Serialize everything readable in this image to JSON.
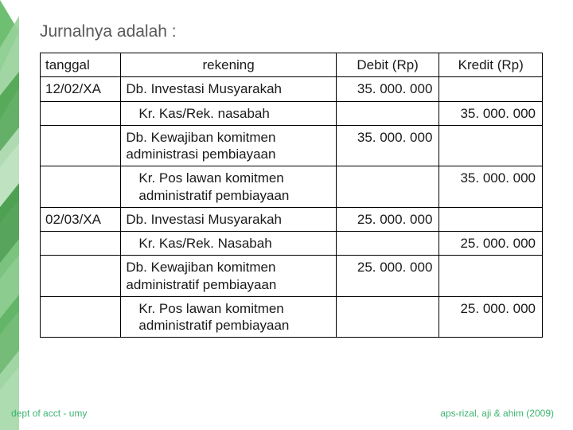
{
  "title": "Jurnalnya adalah :",
  "table": {
    "headers": {
      "tanggal": "tanggal",
      "rekening": "rekening",
      "debit": "Debit (Rp)",
      "kredit": "Kredit (Rp)"
    },
    "rows": [
      {
        "tanggal": "12/02/XA",
        "rekening": "Db. Investasi Musyarakah",
        "indent": false,
        "debit": "35. 000. 000",
        "kredit": ""
      },
      {
        "tanggal": "",
        "rekening": "Kr. Kas/Rek. nasabah",
        "indent": true,
        "debit": "",
        "kredit": "35. 000. 000"
      },
      {
        "tanggal": "",
        "rekening": "Db. Kewajiban komitmen administrasi pembiayaan",
        "indent": false,
        "debit": "35. 000. 000",
        "kredit": ""
      },
      {
        "tanggal": "",
        "rekening": "Kr. Pos lawan komitmen administratif pembiayaan",
        "indent": true,
        "debit": "",
        "kredit": "35. 000. 000"
      },
      {
        "tanggal": "02/03/XA",
        "rekening": "Db. Investasi Musyarakah",
        "indent": false,
        "debit": "25. 000. 000",
        "kredit": ""
      },
      {
        "tanggal": "",
        "rekening": "Kr. Kas/Rek. Nasabah",
        "indent": true,
        "debit": "",
        "kredit": "25. 000. 000"
      },
      {
        "tanggal": "",
        "rekening": "Db. Kewajiban komitmen administratif pembiayaan",
        "indent": false,
        "debit": "25. 000. 000",
        "kredit": ""
      },
      {
        "tanggal": "",
        "rekening": "Kr. Pos lawan komitmen administratif pembiayaan",
        "indent": true,
        "debit": "",
        "kredit": "25. 000. 000"
      }
    ]
  },
  "footer": {
    "left": "dept of acct - umy",
    "right": "aps-rizal, aji & ahim (2009)"
  },
  "deco": {
    "colors": [
      "#6fbf73",
      "#97d19a",
      "#4aa24e",
      "#b8e0ba",
      "#3a9440",
      "#7fc782",
      "#5cb060",
      "#a4d8a7"
    ]
  }
}
